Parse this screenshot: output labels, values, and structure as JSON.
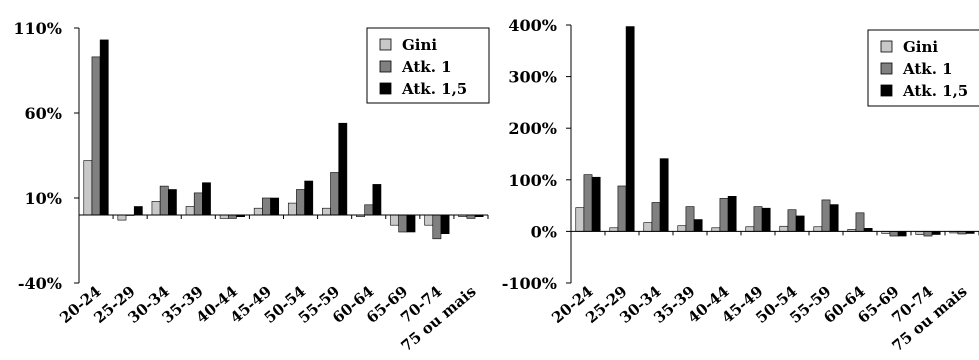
{
  "chart_data": [
    {
      "type": "bar",
      "categories": [
        "20-24",
        "25-29",
        "30-34",
        "35-39",
        "40-44",
        "45-49",
        "50-54",
        "55-59",
        "60-64",
        "65-69",
        "70-74",
        "75 ou mais"
      ],
      "series": [
        {
          "name": "Gini",
          "color": "#c8c8c8",
          "values": [
            32,
            -3,
            8,
            5,
            -2,
            4,
            7,
            4,
            -1,
            -6,
            -6,
            -1
          ]
        },
        {
          "name": "Atk. 1",
          "color": "#808080",
          "values": [
            93,
            0,
            17,
            13,
            -2,
            10,
            15,
            25,
            6,
            -10,
            -14,
            -2
          ]
        },
        {
          "name": "Atk. 1,5",
          "color": "#000000",
          "values": [
            103,
            5,
            15,
            19,
            -1,
            10,
            20,
            54,
            18,
            -10,
            -11,
            -1
          ]
        }
      ],
      "yticks": [
        110,
        60,
        10,
        -40
      ],
      "yticklabels": [
        "110%",
        "60%",
        "10%",
        "-40%"
      ],
      "ylim": [
        -40,
        110
      ],
      "grid": false,
      "legend_position": "top-right"
    },
    {
      "type": "bar",
      "categories": [
        "20-24",
        "25-29",
        "30-34",
        "35-39",
        "40-44",
        "45-49",
        "50-54",
        "55-59",
        "60-64",
        "65-69",
        "70-74",
        "75 ou mais"
      ],
      "series": [
        {
          "name": "Gini",
          "color": "#c8c8c8",
          "values": [
            46,
            7,
            17,
            11,
            7,
            9,
            10,
            9,
            4,
            -4,
            -6,
            -3
          ]
        },
        {
          "name": "Atk. 1",
          "color": "#808080",
          "values": [
            110,
            88,
            56,
            48,
            64,
            48,
            42,
            61,
            36,
            -9,
            -9,
            -5
          ]
        },
        {
          "name": "Atk. 1,5",
          "color": "#000000",
          "values": [
            105,
            397,
            141,
            23,
            68,
            45,
            30,
            52,
            6,
            -9,
            -6,
            -4
          ]
        }
      ],
      "yticks": [
        400,
        300,
        200,
        100,
        0,
        -100
      ],
      "yticklabels": [
        "400%",
        "300%",
        "200%",
        "100%",
        "0%",
        "-100%"
      ],
      "ylim": [
        -100,
        400
      ],
      "grid": false,
      "legend_position": "top-right"
    }
  ]
}
